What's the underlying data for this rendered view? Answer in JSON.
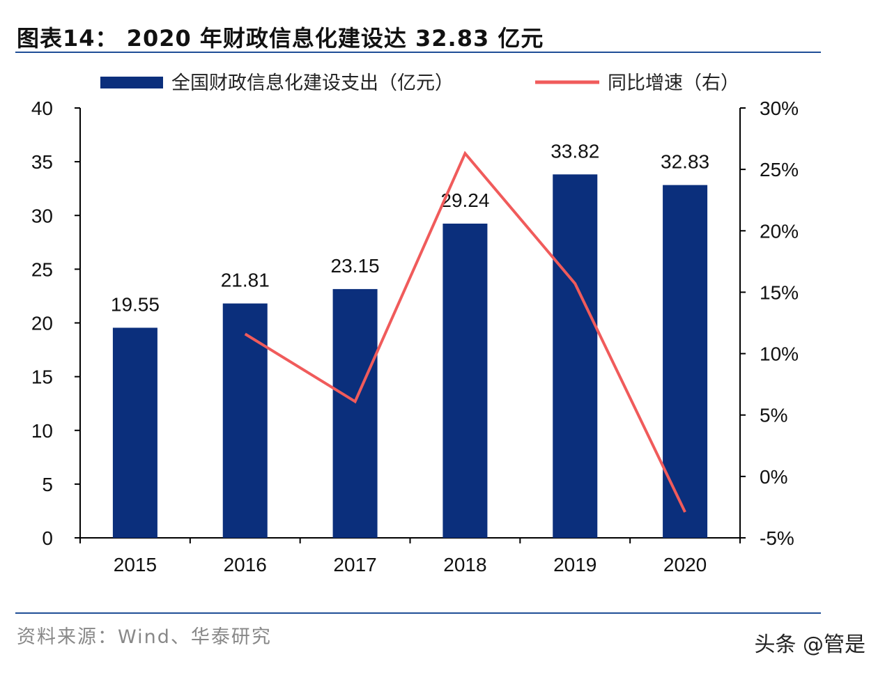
{
  "title": "图表14： 2020 年财政信息化建设达 32.83 亿元",
  "source": "资料来源：Wind、华泰研究",
  "watermark": "头条 @管是",
  "chart_data": {
    "type": "bar+line",
    "categories": [
      "2015",
      "2016",
      "2017",
      "2018",
      "2019",
      "2020"
    ],
    "series": [
      {
        "name": "全国财政信息化建设支出（亿元）",
        "type": "bar",
        "axis": "left",
        "color": "#0b2f7c",
        "values": [
          19.55,
          21.81,
          23.15,
          29.24,
          33.82,
          32.83
        ],
        "labels": [
          "19.55",
          "21.81",
          "23.15",
          "29.24",
          "33.82",
          "32.83"
        ]
      },
      {
        "name": "同比增速（右）",
        "type": "line",
        "axis": "right",
        "color": "#f05b5b",
        "x": [
          "2016",
          "2017",
          "2018",
          "2019",
          "2020"
        ],
        "values": [
          11.6,
          6.1,
          26.3,
          15.7,
          -2.9
        ]
      }
    ],
    "y_left": {
      "lim": [
        0,
        40
      ],
      "ticks": [
        "0",
        "5",
        "10",
        "15",
        "20",
        "25",
        "30",
        "35",
        "40"
      ]
    },
    "y_right": {
      "lim": [
        -5,
        30
      ],
      "ticks": [
        "-5%",
        "0%",
        "5%",
        "10%",
        "15%",
        "20%",
        "25%",
        "30%"
      ]
    },
    "legend_position": "top",
    "grid": false
  }
}
